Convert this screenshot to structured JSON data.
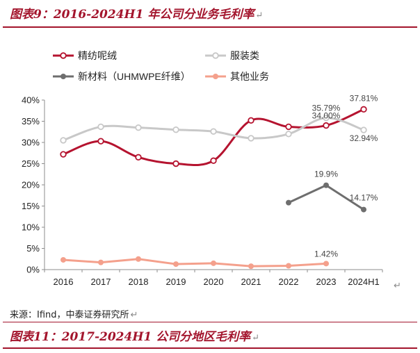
{
  "header": {
    "title": "图表9：2016-2024H1 年公司分业务毛利率"
  },
  "footer": {
    "source": "来源：Ifind，中泰证券研究所",
    "next_title": "图表11：2017-2024H1 公司分地区毛利率"
  },
  "return_mark": "↵",
  "chart_data": {
    "type": "line",
    "categories": [
      "2016",
      "2017",
      "2018",
      "2019",
      "2020",
      "2021",
      "2022",
      "2023",
      "2024H1"
    ],
    "yticks": [
      "0%",
      "5%",
      "10%",
      "15%",
      "20%",
      "25%",
      "30%",
      "35%",
      "40%"
    ],
    "ylim": [
      0,
      40
    ],
    "legend_position": "top",
    "grid": false,
    "series": [
      {
        "name": "精纺呢绒",
        "color": "#b5132f",
        "marker": "hollow",
        "values": [
          27.2,
          30.3,
          26.5,
          25.0,
          25.7,
          35.2,
          33.7,
          34.0,
          37.81
        ]
      },
      {
        "name": "服装类",
        "color": "#c8c8c8",
        "marker": "hollow",
        "values": [
          30.5,
          33.7,
          33.5,
          33.0,
          32.6,
          31.0,
          32.0,
          35.79,
          32.94
        ]
      },
      {
        "name": "新材料（UHMWPE纤维）",
        "color": "#6e6e6e",
        "marker": "filled",
        "values": [
          null,
          null,
          null,
          null,
          null,
          null,
          15.8,
          19.9,
          14.17
        ]
      },
      {
        "name": "其他业务",
        "color": "#f4a08c",
        "marker": "filled",
        "values": [
          2.3,
          1.7,
          2.5,
          1.3,
          1.5,
          0.8,
          0.9,
          1.42,
          null
        ]
      }
    ],
    "data_labels": [
      {
        "series": 1,
        "index": 7,
        "text": "35.79%"
      },
      {
        "series": 0,
        "index": 7,
        "text": "34.00%"
      },
      {
        "series": 0,
        "index": 8,
        "text": "37.81%"
      },
      {
        "series": 1,
        "index": 8,
        "text": "32.94%"
      },
      {
        "series": 2,
        "index": 7,
        "text": "19.9%"
      },
      {
        "series": 2,
        "index": 8,
        "text": "14.17%"
      },
      {
        "series": 3,
        "index": 7,
        "text": "1.42%"
      }
    ]
  }
}
